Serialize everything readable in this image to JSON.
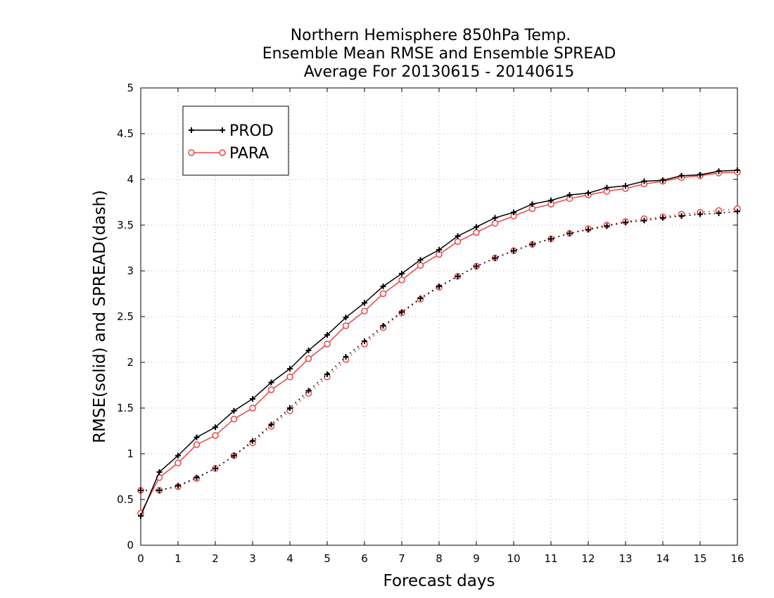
{
  "chart_data": {
    "type": "line",
    "title": [
      "Northern Hemisphere 850hPa Temp.",
      "Ensemble Mean RMSE and Ensemble SPREAD",
      "Average For 20130615 - 20140615"
    ],
    "xlabel": "Forecast days",
    "ylabel": "RMSE(solid) and SPREAD(dash)",
    "xlim": [
      0,
      16
    ],
    "ylim": [
      0,
      5
    ],
    "xticks": [
      "0",
      "1",
      "2",
      "3",
      "4",
      "5",
      "6",
      "7",
      "8",
      "9",
      "10",
      "11",
      "12",
      "13",
      "14",
      "15",
      "16"
    ],
    "yticks": [
      "0",
      "0.5",
      "1",
      "1.5",
      "2",
      "2.5",
      "3",
      "3.5",
      "4",
      "4.5",
      "5"
    ],
    "grid": true,
    "legend_position": "top-left",
    "x": [
      0,
      0.5,
      1,
      1.5,
      2,
      2.5,
      3,
      3.5,
      4,
      4.5,
      5,
      5.5,
      6,
      6.5,
      7,
      7.5,
      8,
      8.5,
      9,
      9.5,
      10,
      10.5,
      11,
      11.5,
      12,
      12.5,
      13,
      13.5,
      14,
      14.5,
      15,
      15.5,
      16
    ],
    "series": [
      {
        "name": "PROD",
        "metric": "RMSE",
        "style": "solid",
        "color": "#000000",
        "marker": "plus",
        "values": [
          0.32,
          0.8,
          0.98,
          1.18,
          1.29,
          1.47,
          1.6,
          1.78,
          1.93,
          2.13,
          2.3,
          2.49,
          2.65,
          2.83,
          2.97,
          3.12,
          3.23,
          3.38,
          3.48,
          3.58,
          3.64,
          3.73,
          3.77,
          3.83,
          3.85,
          3.91,
          3.93,
          3.98,
          3.99,
          4.04,
          4.05,
          4.09,
          4.1
        ]
      },
      {
        "name": "PARA",
        "metric": "RMSE",
        "style": "solid",
        "color": "#e84646",
        "marker": "circle",
        "values": [
          0.35,
          0.74,
          0.9,
          1.1,
          1.2,
          1.38,
          1.5,
          1.7,
          1.84,
          2.04,
          2.2,
          2.4,
          2.56,
          2.75,
          2.9,
          3.06,
          3.18,
          3.32,
          3.42,
          3.52,
          3.6,
          3.68,
          3.73,
          3.79,
          3.83,
          3.87,
          3.9,
          3.95,
          3.98,
          4.02,
          4.04,
          4.07,
          4.08
        ]
      },
      {
        "name": "PROD",
        "metric": "SPREAD",
        "style": "dash",
        "color": "#000000",
        "marker": "plus",
        "values": [
          0.6,
          0.6,
          0.65,
          0.74,
          0.84,
          0.98,
          1.14,
          1.32,
          1.5,
          1.69,
          1.87,
          2.06,
          2.23,
          2.4,
          2.55,
          2.7,
          2.83,
          2.94,
          3.05,
          3.14,
          3.22,
          3.29,
          3.35,
          3.41,
          3.45,
          3.49,
          3.53,
          3.55,
          3.58,
          3.6,
          3.62,
          3.63,
          3.65
        ]
      },
      {
        "name": "PARA",
        "metric": "SPREAD",
        "style": "dash",
        "color": "#e84646",
        "marker": "circle",
        "values": [
          0.6,
          0.6,
          0.64,
          0.73,
          0.84,
          0.98,
          1.12,
          1.3,
          1.47,
          1.66,
          1.84,
          2.03,
          2.2,
          2.38,
          2.54,
          2.69,
          2.82,
          2.94,
          3.05,
          3.14,
          3.22,
          3.29,
          3.35,
          3.41,
          3.46,
          3.5,
          3.54,
          3.57,
          3.59,
          3.62,
          3.64,
          3.66,
          3.68
        ]
      }
    ],
    "legend": [
      {
        "label": "PROD",
        "color": "#000000",
        "marker": "plus"
      },
      {
        "label": "PARA",
        "color": "#e84646",
        "marker": "circle"
      }
    ]
  }
}
